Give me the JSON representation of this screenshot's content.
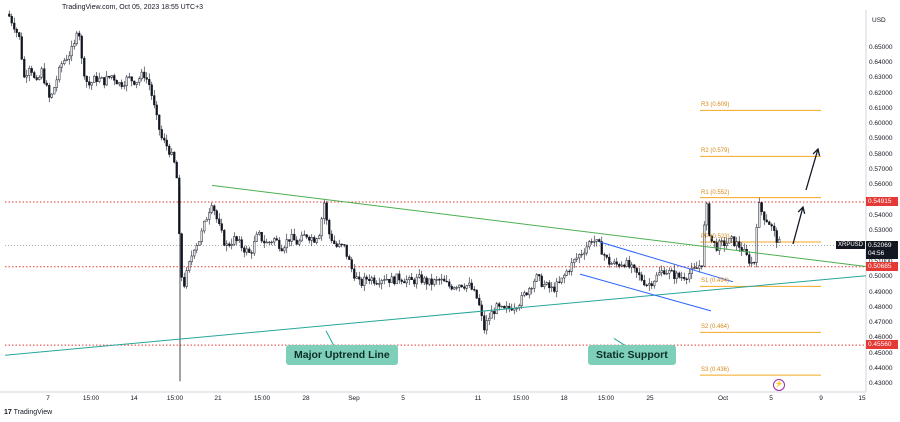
{
  "header": {
    "caption": "TradingView.com, Oct 05, 2023 18:55 UTC+3"
  },
  "footer": {
    "brand": "TradingView"
  },
  "currency": "USD",
  "chart_data": {
    "type": "candlestick",
    "symbol": "XRPUSD",
    "ylim": [
      0.425,
      0.672
    ],
    "y_ticks": [
      "0.65000",
      "0.64000",
      "0.63000",
      "0.62000",
      "0.61000",
      "0.60000",
      "0.59000",
      "0.58000",
      "0.57000",
      "0.56000",
      "0.55000",
      "0.54000",
      "0.53000",
      "0.52000",
      "0.51000",
      "0.50000",
      "0.49000",
      "0.48000",
      "0.47000",
      "0.46000",
      "0.45000",
      "0.44000",
      "0.43000"
    ],
    "x_ticks": [
      "7",
      "15:00",
      "14",
      "15:00",
      "21",
      "15:00",
      "28",
      "Sep",
      "5",
      "11",
      "15:00",
      "18",
      "15:00",
      "25",
      "Oct",
      "5",
      "9",
      "15"
    ],
    "last_price": {
      "label": "XRPUSD",
      "value": "0.52069",
      "countdown": "04:56",
      "y": 0.52069
    },
    "static_levels": [
      {
        "value": "0.54915",
        "y": 0.54915
      },
      {
        "value": "0.50685",
        "y": 0.50685
      },
      {
        "value": "0.45560",
        "y": 0.4556
      }
    ],
    "pivots": [
      {
        "label": "R3 (0.609)",
        "y": 0.609
      },
      {
        "label": "R2 (0.579)",
        "y": 0.579
      },
      {
        "label": "R1 (0.552)",
        "y": 0.552
      },
      {
        "label": "PP (0.523)",
        "y": 0.523
      },
      {
        "label": "S1 (0.494)",
        "y": 0.494
      },
      {
        "label": "S2 (0.464)",
        "y": 0.464
      },
      {
        "label": "S3 (0.436)",
        "y": 0.436
      }
    ],
    "annotations": [
      "Major Uptrend Line",
      "Static Support"
    ],
    "colors": {
      "up": "#26a69a",
      "down": "#ef5350",
      "candle": "#131722",
      "triangle": "#4caf50",
      "uptrend": "#26a69a",
      "channel": "#2962ff",
      "level": "#e53935",
      "pivot": "#f5a623"
    }
  }
}
